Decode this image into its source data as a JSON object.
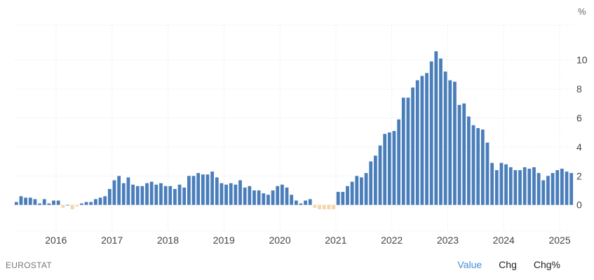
{
  "chart_data": {
    "type": "bar",
    "unit": "%",
    "x_tick_labels": [
      "2016",
      "2017",
      "2018",
      "2019",
      "2020",
      "2021",
      "2022",
      "2023",
      "2024",
      "2025"
    ],
    "y_tick_labels": [
      "0",
      "2",
      "4",
      "6",
      "8",
      "10"
    ],
    "ylim": [
      -1.8,
      12.4
    ],
    "grid": true,
    "colors": {
      "positive": "#4a7ebb",
      "negative": "#f5d5a8",
      "grid": "#dddddd"
    },
    "x_start": "2015-04",
    "months": [
      "2015-04",
      "2015-05",
      "2015-06",
      "2015-07",
      "2015-08",
      "2015-09",
      "2015-10",
      "2015-11",
      "2015-12",
      "2016-01",
      "2016-02",
      "2016-03",
      "2016-04",
      "2016-05",
      "2016-06",
      "2016-07",
      "2016-08",
      "2016-09",
      "2016-10",
      "2016-11",
      "2016-12",
      "2017-01",
      "2017-02",
      "2017-03",
      "2017-04",
      "2017-05",
      "2017-06",
      "2017-07",
      "2017-08",
      "2017-09",
      "2017-10",
      "2017-11",
      "2017-12",
      "2018-01",
      "2018-02",
      "2018-03",
      "2018-04",
      "2018-05",
      "2018-06",
      "2018-07",
      "2018-08",
      "2018-09",
      "2018-10",
      "2018-11",
      "2018-12",
      "2019-01",
      "2019-02",
      "2019-03",
      "2019-04",
      "2019-05",
      "2019-06",
      "2019-07",
      "2019-08",
      "2019-09",
      "2019-10",
      "2019-11",
      "2019-12",
      "2020-01",
      "2020-02",
      "2020-03",
      "2020-04",
      "2020-05",
      "2020-06",
      "2020-07",
      "2020-08",
      "2020-09",
      "2020-10",
      "2020-11",
      "2020-12",
      "2021-01",
      "2021-02",
      "2021-03",
      "2021-04",
      "2021-05",
      "2021-06",
      "2021-07",
      "2021-08",
      "2021-09",
      "2021-10",
      "2021-11",
      "2021-12",
      "2022-01",
      "2022-02",
      "2022-03",
      "2022-04",
      "2022-05",
      "2022-06",
      "2022-07",
      "2022-08",
      "2022-09",
      "2022-10",
      "2022-11",
      "2022-12",
      "2023-01",
      "2023-02",
      "2023-03",
      "2023-04",
      "2023-05",
      "2023-06",
      "2023-07",
      "2023-08",
      "2023-09",
      "2023-10",
      "2023-11",
      "2023-12",
      "2024-01",
      "2024-02",
      "2024-03",
      "2024-04",
      "2024-05",
      "2024-06",
      "2024-07",
      "2024-08",
      "2024-09",
      "2024-10",
      "2024-11",
      "2024-12",
      "2025-01",
      "2025-02",
      "2025-03"
    ],
    "values": [
      0.2,
      0.6,
      0.5,
      0.5,
      0.4,
      0.1,
      0.4,
      0.1,
      0.3,
      0.3,
      -0.2,
      0.0,
      -0.3,
      -0.1,
      0.1,
      0.2,
      0.2,
      0.4,
      0.5,
      0.6,
      1.1,
      1.7,
      2.0,
      1.5,
      1.9,
      1.4,
      1.3,
      1.3,
      1.5,
      1.6,
      1.4,
      1.5,
      1.3,
      1.3,
      1.1,
      1.4,
      1.2,
      2.0,
      2.0,
      2.2,
      2.1,
      2.1,
      2.3,
      1.9,
      1.5,
      1.4,
      1.5,
      1.4,
      1.7,
      1.2,
      1.3,
      1.0,
      1.0,
      0.8,
      0.7,
      1.0,
      1.3,
      1.4,
      1.2,
      0.7,
      0.3,
      0.1,
      0.3,
      0.4,
      -0.2,
      -0.3,
      -0.3,
      -0.3,
      -0.3,
      0.9,
      0.9,
      1.3,
      1.6,
      2.0,
      1.9,
      2.2,
      3.0,
      3.4,
      4.1,
      4.9,
      5.0,
      5.1,
      5.9,
      7.4,
      7.4,
      8.1,
      8.6,
      8.9,
      9.1,
      9.9,
      10.6,
      10.1,
      9.2,
      8.6,
      8.5,
      6.9,
      7.0,
      6.1,
      5.5,
      5.3,
      5.2,
      4.3,
      2.9,
      2.4,
      2.9,
      2.8,
      2.6,
      2.4,
      2.4,
      2.6,
      2.5,
      2.6,
      2.2,
      1.7,
      2.0,
      2.2,
      2.4,
      2.5,
      2.3,
      2.2
    ]
  },
  "footer": {
    "source": "EUROSTAT",
    "tabs": [
      {
        "label": "Value",
        "active": true
      },
      {
        "label": "Chg",
        "active": false
      },
      {
        "label": "Chg%",
        "active": false
      }
    ]
  }
}
